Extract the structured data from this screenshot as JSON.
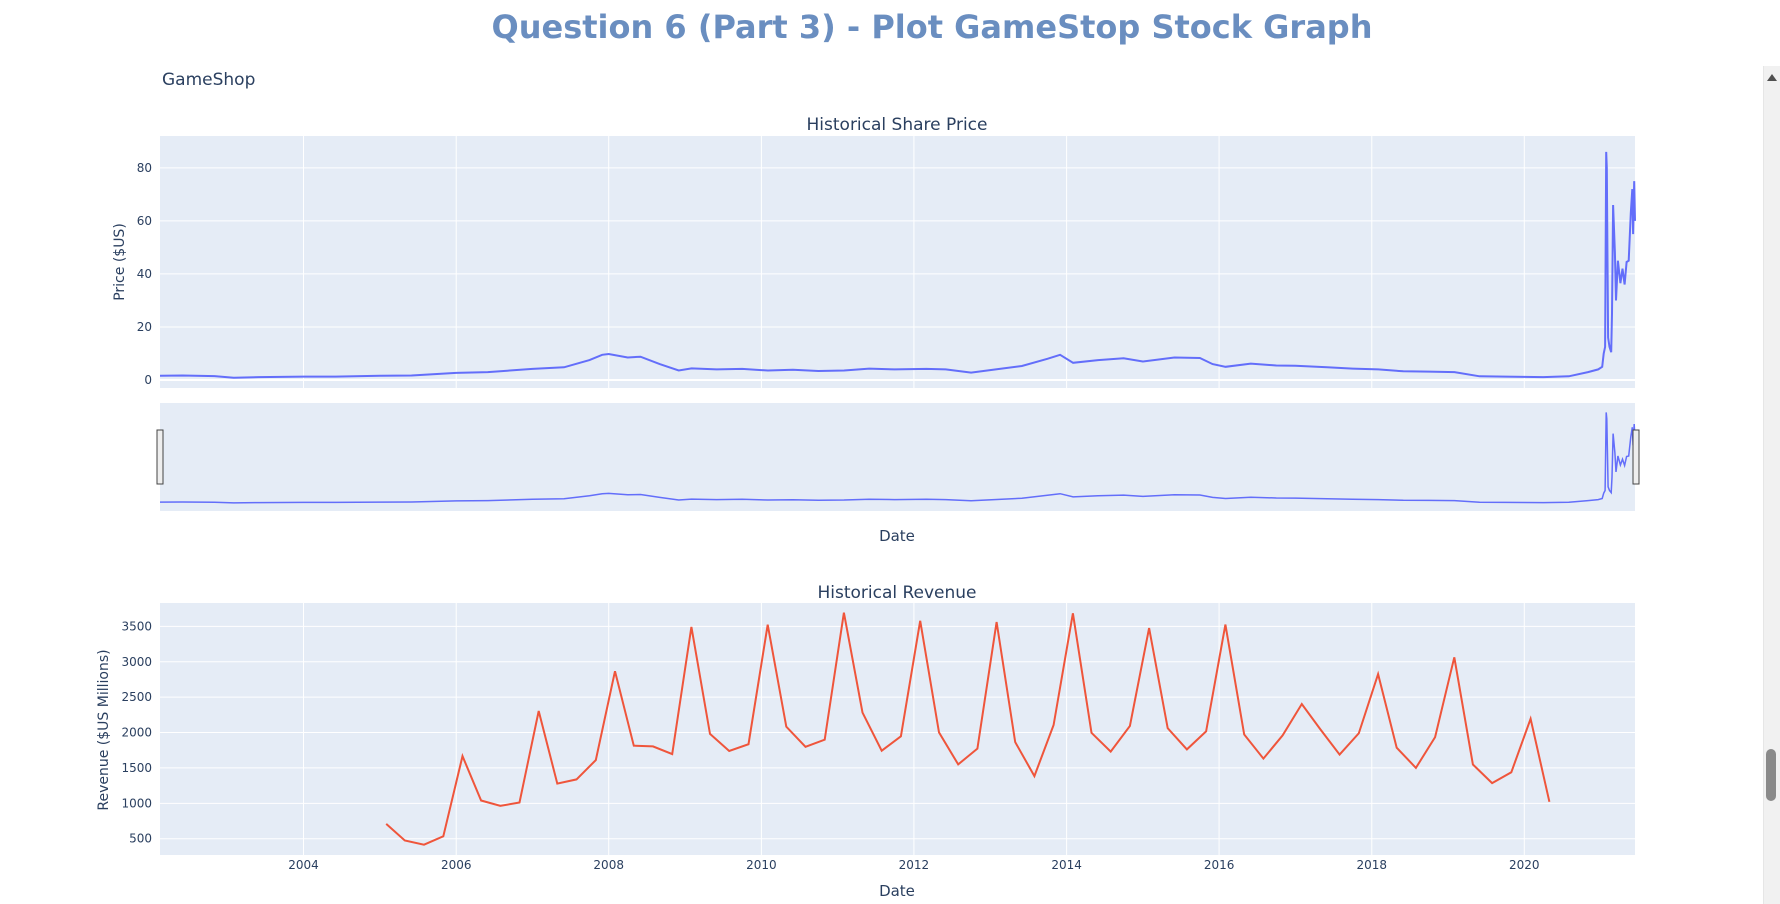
{
  "page": {
    "title": "Question 6 (Part 3) - Plot GameStop Stock Graph"
  },
  "chart_data": {
    "type": "line",
    "title": "GameShop",
    "colors": {
      "price": "#636efa",
      "revenue": "#ef553b",
      "plot_bg": "#e5ecf6",
      "grid": "#ffffff"
    },
    "subplots": [
      {
        "subtitle": "Historical Share Price",
        "ylabel": "Price ($US)",
        "xlabel": "Date",
        "x_range": [
          "2002-02-13",
          "2021-06-14"
        ],
        "ylim": [
          -3,
          92
        ],
        "yticks": [
          0,
          20,
          40,
          60,
          80
        ],
        "grid": true,
        "rangeslider": true,
        "series": [
          {
            "x": [
              "2002-02-13",
              "2002-06",
              "2002-11",
              "2003-02",
              "2003-06",
              "2004-01",
              "2004-06",
              "2005-01",
              "2005-06",
              "2006-01",
              "2006-06",
              "2007-01",
              "2007-06",
              "2007-10",
              "2007-12",
              "2008-01",
              "2008-04",
              "2008-06",
              "2008-09",
              "2008-12",
              "2009-02",
              "2009-06",
              "2009-10",
              "2010-02",
              "2010-06",
              "2010-10",
              "2011-02",
              "2011-06",
              "2011-10",
              "2012-03",
              "2012-06",
              "2012-10",
              "2013-02",
              "2013-06",
              "2013-10",
              "2013-12",
              "2014-02",
              "2014-06",
              "2014-10",
              "2015-01",
              "2015-06",
              "2015-10",
              "2015-12",
              "2016-02",
              "2016-06",
              "2016-10",
              "2017-01",
              "2017-06",
              "2017-10",
              "2018-02",
              "2018-06",
              "2018-10",
              "2019-02",
              "2019-06",
              "2019-10",
              "2020-01",
              "2020-04",
              "2020-08",
              "2020-11",
              "2020-12-20",
              "2021-01-08",
              "2021-01-15",
              "2021-01-22",
              "2021-01-27",
              "2021-01-30",
              "2021-02-05",
              "2021-02-12",
              "2021-02-20",
              "2021-02-24",
              "2021-03-01",
              "2021-03-10",
              "2021-03-15",
              "2021-03-24",
              "2021-04-05",
              "2021-04-15",
              "2021-04-25",
              "2021-05-05",
              "2021-05-15",
              "2021-05-25",
              "2021-06-01",
              "2021-06-05",
              "2021-06-10",
              "2021-06-14"
            ],
            "y": [
              1.6,
              1.7,
              1.5,
              0.9,
              1.1,
              1.3,
              1.3,
              1.6,
              1.7,
              2.7,
              3.0,
              4.2,
              4.8,
              7.5,
              9.5,
              9.8,
              8.5,
              8.8,
              6.0,
              3.6,
              4.4,
              4.0,
              4.2,
              3.6,
              3.9,
              3.4,
              3.6,
              4.3,
              4.0,
              4.2,
              4.0,
              2.8,
              4.1,
              5.3,
              8.0,
              9.5,
              6.5,
              7.5,
              8.2,
              7.0,
              8.5,
              8.3,
              6.0,
              5.0,
              6.2,
              5.5,
              5.4,
              4.8,
              4.3,
              4.0,
              3.3,
              3.2,
              3.0,
              1.4,
              1.3,
              1.2,
              1.1,
              1.4,
              3.0,
              4.0,
              5.0,
              10.0,
              12.5,
              86.0,
              80.0,
              16.0,
              12.5,
              10.5,
              25.0,
              66.0,
              48.0,
              30.0,
              45.0,
              36.5,
              42.0,
              36.0,
              44.5,
              45.0,
              63.0,
              72.0,
              55.0,
              75.0,
              60.0
            ]
          }
        ]
      },
      {
        "subtitle": "Historical Revenue",
        "ylabel": "Revenue ($US Millions)",
        "xlabel": "Date",
        "x_range": [
          "2002-02-13",
          "2021-06-14"
        ],
        "ylim": [
          270,
          3830
        ],
        "yticks": [
          500,
          1000,
          1500,
          2000,
          2500,
          3000,
          3500
        ],
        "xticks": [
          "2004",
          "2006",
          "2008",
          "2010",
          "2012",
          "2014",
          "2016",
          "2018",
          "2020"
        ],
        "grid": true,
        "series": [
          {
            "x": [
              "2005-01-31",
              "2005-04-30",
              "2005-07-31",
              "2005-10-31",
              "2006-01-31",
              "2006-04-30",
              "2006-07-31",
              "2006-10-31",
              "2007-01-31",
              "2007-04-30",
              "2007-07-31",
              "2007-10-31",
              "2008-01-31",
              "2008-04-30",
              "2008-07-31",
              "2008-10-31",
              "2009-01-31",
              "2009-04-30",
              "2009-07-31",
              "2009-10-31",
              "2010-01-31",
              "2010-04-30",
              "2010-07-31",
              "2010-10-31",
              "2011-01-31",
              "2011-04-30",
              "2011-07-31",
              "2011-10-31",
              "2012-01-31",
              "2012-04-30",
              "2012-07-31",
              "2012-10-31",
              "2013-01-31",
              "2013-04-30",
              "2013-07-31",
              "2013-10-31",
              "2014-01-31",
              "2014-04-30",
              "2014-07-31",
              "2014-10-31",
              "2015-01-31",
              "2015-04-30",
              "2015-07-31",
              "2015-10-31",
              "2016-01-31",
              "2016-04-30",
              "2016-07-31",
              "2016-10-31",
              "2017-01-31",
              "2017-04-30",
              "2017-07-31",
              "2017-10-31",
              "2018-01-31",
              "2018-04-30",
              "2018-07-31",
              "2018-10-31",
              "2019-01-31",
              "2019-04-30",
              "2019-07-31",
              "2019-10-31",
              "2020-01-31",
              "2020-04-30"
            ],
            "y": [
              709,
              475,
              415,
              534,
              1667,
              1040,
              963,
              1012,
              2304,
              1279,
              1338,
              1611,
              2866,
              1814,
              1804,
              1696,
              3492,
              1981,
              1739,
              1835,
              3524,
              2083,
              1799,
              1899,
              3693,
              2281,
              1744,
              1947,
              3579,
              2002,
              1550,
              1773,
              3562,
              1865,
              1384,
              2107,
              3684,
              1996,
              1731,
              2092,
              3476,
              2061,
              1762,
              2016,
              3525,
              1972,
              1632,
              1959,
              2403,
              2045,
              1688,
              1989,
              2825,
              1786,
              1501,
              1935,
              3063,
              1548,
              1286,
              1439,
              2194,
              1021
            ]
          }
        ]
      }
    ],
    "xticks": [
      "2004",
      "2006",
      "2008",
      "2010",
      "2012",
      "2014",
      "2016",
      "2018",
      "2020"
    ]
  }
}
